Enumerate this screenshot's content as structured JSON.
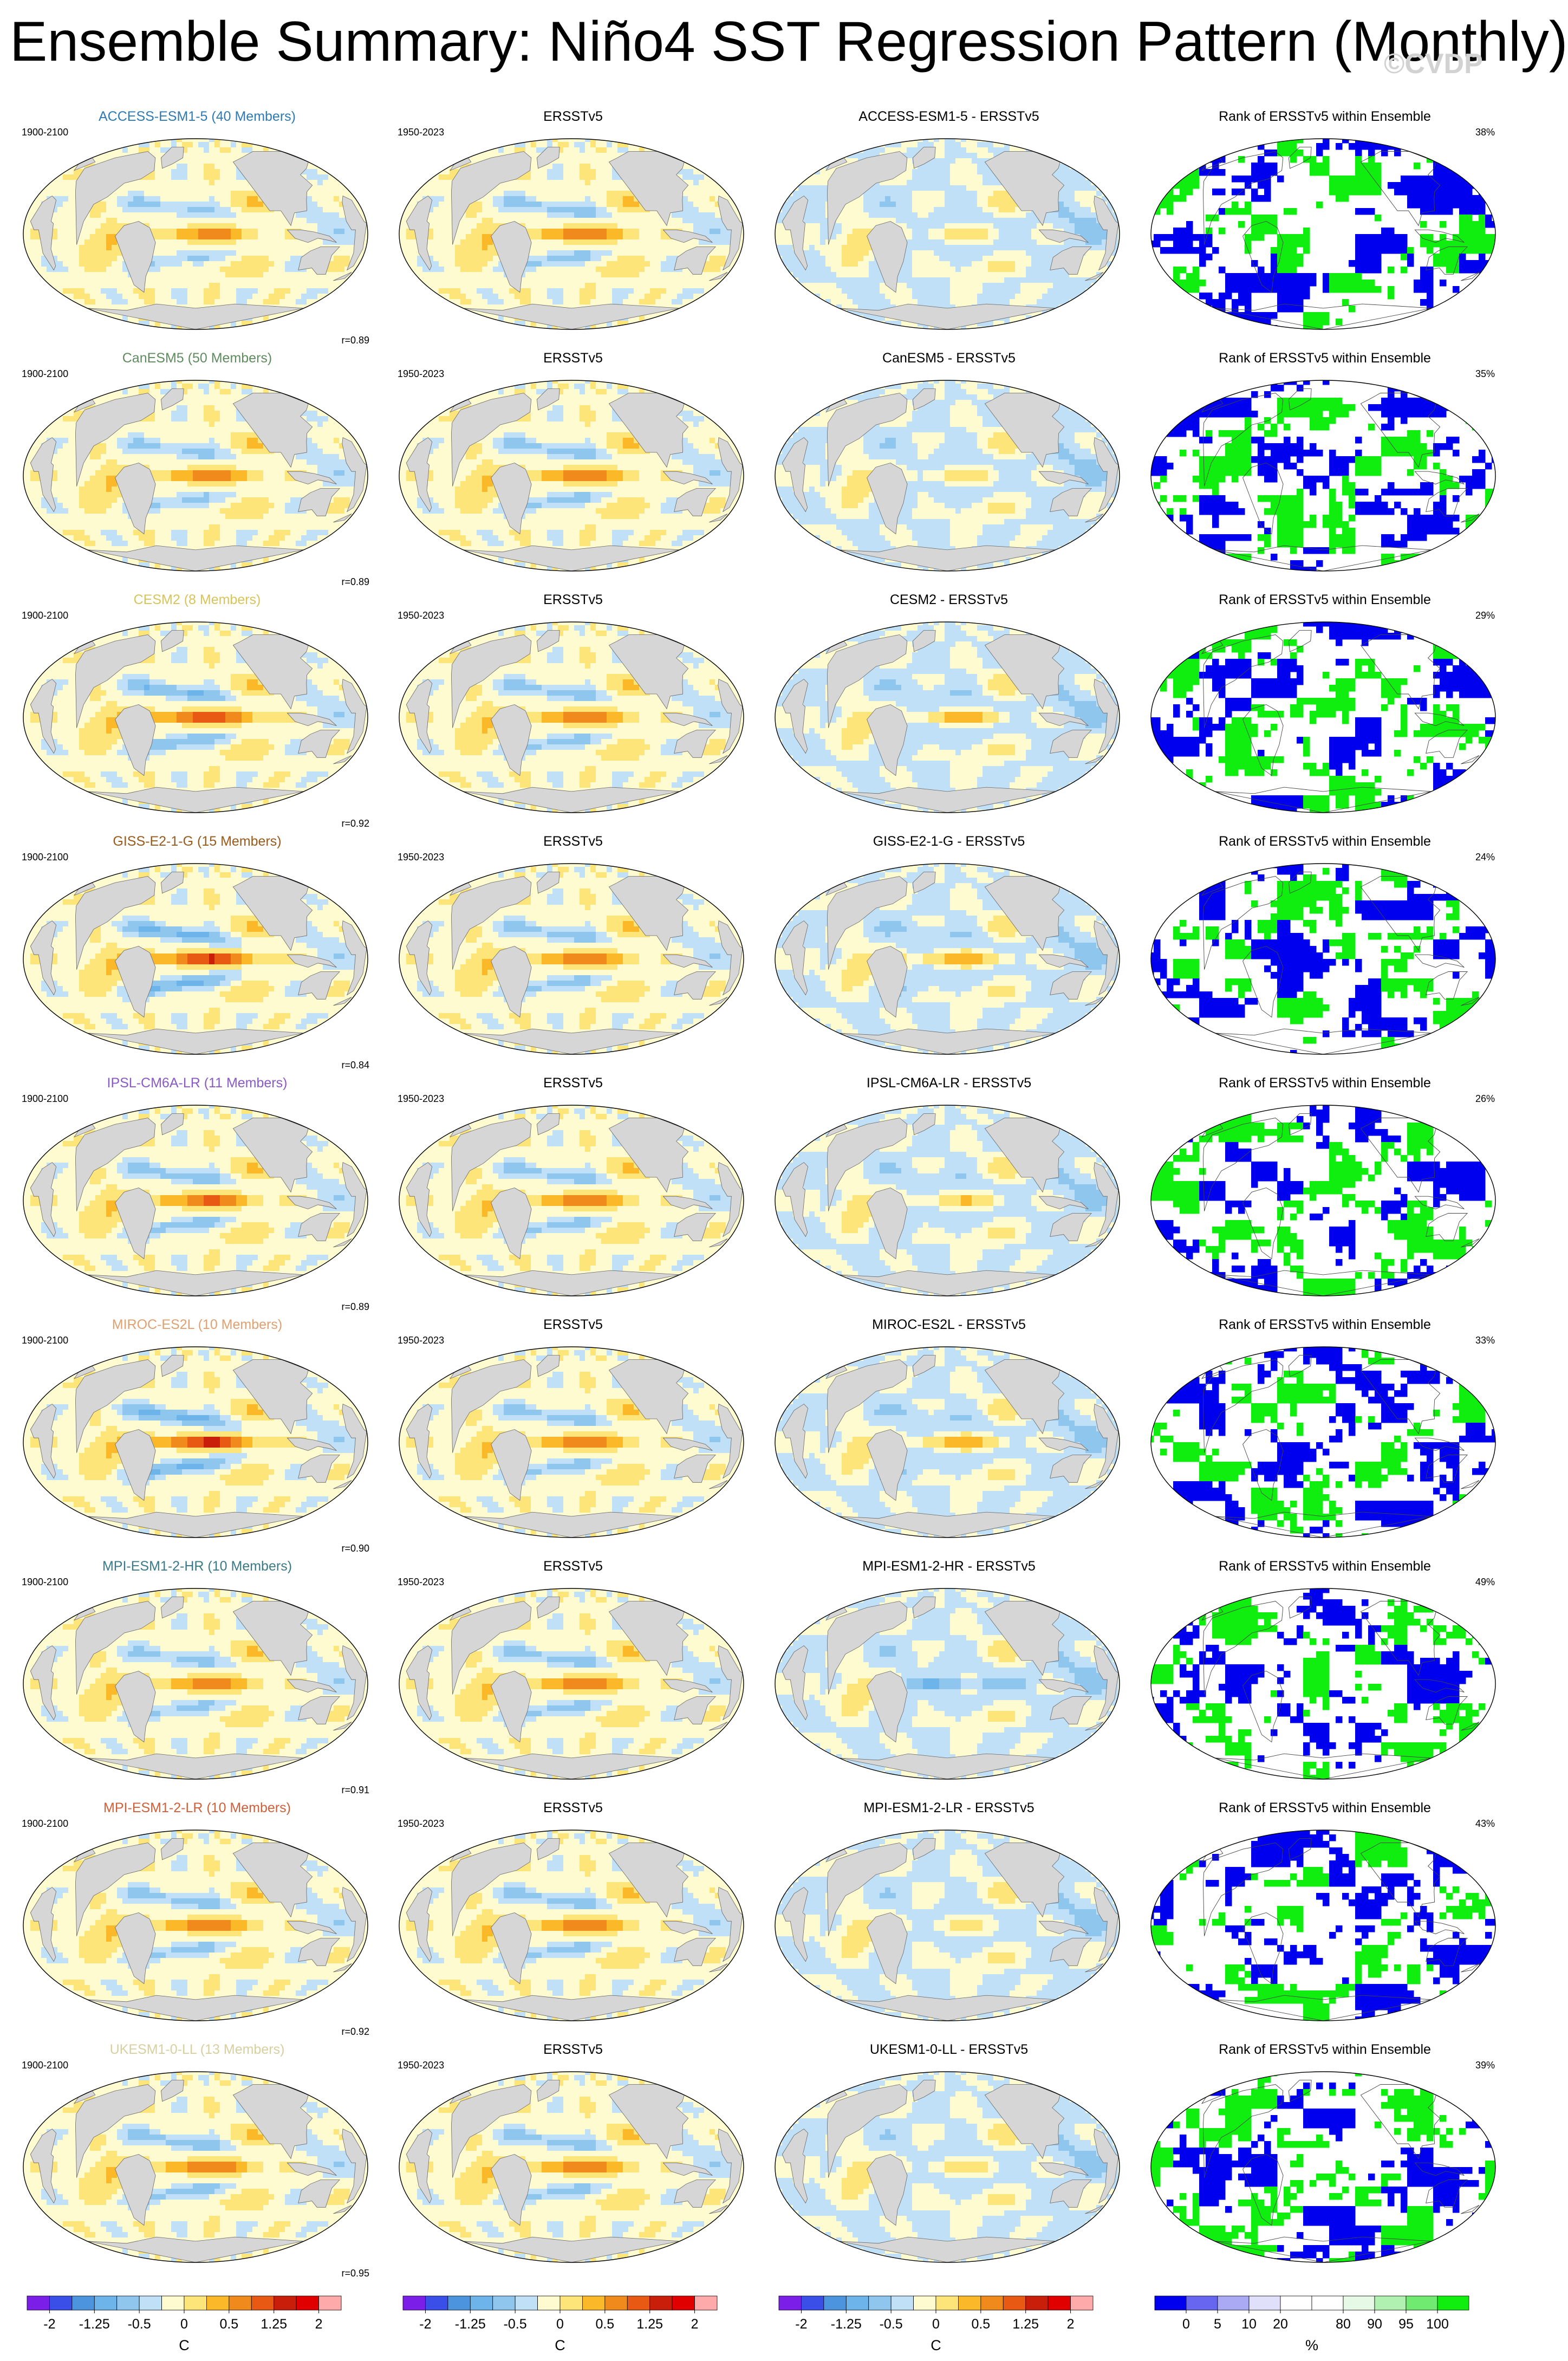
{
  "title": "Ensemble Summary: Niño4 SST Regression Pattern (Monthly)",
  "watermark": "©CVDP",
  "colors": {
    "land": "#d6d6d6",
    "warm_strong": "#c81e0a",
    "warm": "#f08a1c",
    "warm_mid": "#fbb92a",
    "warm_weak": "#fde57a",
    "neutral": "#fffbd0",
    "cool_weak": "#bfe0f6",
    "cool": "#8ec6ee",
    "cool_strong": "#4c94dd",
    "rank_low": "#0000ee",
    "rank_high": "#10ee10",
    "rank_mid": "#ffffff"
  },
  "rows": [
    {
      "model": "ACCESS-ESM1-5 (40 Members)",
      "model_color": "#2e7bb4",
      "years": "1900-2100",
      "obs_years": "1950-2023",
      "obs": "ERSSTv5",
      "diff": "ACCESS-ESM1-5 - ERSSTv5",
      "rank": "Rank of ERSSTv5 within Ensemble",
      "pct": "38%",
      "r": "r=0.89",
      "amp": 1.05,
      "diff_amp": 0.35
    },
    {
      "model": "CanESM5 (50 Members)",
      "model_color": "#5e8c5e",
      "years": "1900-2100",
      "obs_years": "1950-2023",
      "obs": "ERSSTv5",
      "diff": "CanESM5 - ERSSTv5",
      "rank": "Rank of ERSSTv5 within Ensemble",
      "pct": "35%",
      "r": "r=0.89",
      "amp": 1.15,
      "diff_amp": 0.4
    },
    {
      "model": "CESM2 (8 Members)",
      "model_color": "#d8c45a",
      "years": "1900-2100",
      "obs_years": "1950-2023",
      "obs": "ERSSTv5",
      "diff": "CESM2 - ERSSTv5",
      "rank": "Rank of ERSSTv5 within Ensemble",
      "pct": "29%",
      "r": "r=0.92",
      "amp": 1.6,
      "diff_amp": 0.75
    },
    {
      "model": "GISS-E2-1-G (15 Members)",
      "model_color": "#9a5a1a",
      "years": "1900-2100",
      "obs_years": "1950-2023",
      "obs": "ERSSTv5",
      "diff": "GISS-E2-1-G - ERSSTv5",
      "rank": "Rank of ERSSTv5 within Ensemble",
      "pct": "24%",
      "r": "r=0.84",
      "amp": 1.75,
      "diff_amp": 0.85
    },
    {
      "model": "IPSL-CM6A-LR (11 Members)",
      "model_color": "#8a5ac8",
      "years": "1900-2100",
      "obs_years": "1950-2023",
      "obs": "ERSSTv5",
      "diff": "IPSL-CM6A-LR - ERSSTv5",
      "rank": "Rank of ERSSTv5 within Ensemble",
      "pct": "26%",
      "r": "r=0.89",
      "amp": 1.35,
      "diff_amp": 0.55
    },
    {
      "model": "MIROC-ES2L (10 Members)",
      "model_color": "#e0a070",
      "years": "1900-2100",
      "obs_years": "1950-2023",
      "obs": "ERSSTv5",
      "diff": "MIROC-ES2L - ERSSTv5",
      "rank": "Rank of ERSSTv5 within Ensemble",
      "pct": "33%",
      "r": "r=0.90",
      "amp": 1.8,
      "diff_amp": 0.8
    },
    {
      "model": "MPI-ESM1-2-HR (10 Members)",
      "model_color": "#3a7a88",
      "years": "1900-2100",
      "obs_years": "1950-2023",
      "obs": "ERSSTv5",
      "diff": "MPI-ESM1-2-HR - ERSSTv5",
      "rank": "Rank of ERSSTv5 within Ensemble",
      "pct": "49%",
      "r": "r=0.91",
      "amp": 1.2,
      "diff_amp": -0.45
    },
    {
      "model": "MPI-ESM1-2-LR (10 Members)",
      "model_color": "#d0603a",
      "years": "1900-2100",
      "obs_years": "1950-2023",
      "obs": "ERSSTv5",
      "diff": "MPI-ESM1-2-LR - ERSSTv5",
      "rank": "Rank of ERSSTv5 within Ensemble",
      "pct": "43%",
      "r": "r=0.92",
      "amp": 1.25,
      "diff_amp": 0.3
    },
    {
      "model": "UKESM1-0-LL (13 Members)",
      "model_color": "#d6d0a0",
      "years": "1900-2100",
      "obs_years": "1950-2023",
      "obs": "ERSSTv5",
      "diff": "UKESM1-0-LL - ERSSTv5",
      "rank": "Rank of ERSSTv5 within Ensemble",
      "pct": "39%",
      "r": "r=0.95",
      "amp": 1.3,
      "diff_amp": 0.35
    }
  ],
  "colorbars": {
    "sst": {
      "colors": [
        "#7a1ee8",
        "#3a4ee8",
        "#4c94dd",
        "#6cb4ea",
        "#8ec6ee",
        "#bfe0f6",
        "#fffbd0",
        "#fde57a",
        "#fbb92a",
        "#f08a1c",
        "#e85a14",
        "#c81e0a",
        "#e00000",
        "#ffaaaa"
      ],
      "labels": [
        "-2",
        "-1.25",
        "-0.5",
        "0",
        "0.5",
        "1.25",
        "2"
      ],
      "label_positions": [
        1,
        3,
        5,
        7,
        9,
        11,
        13
      ],
      "unit": "C"
    },
    "rank": {
      "colors": [
        "#0000ee",
        "#6666f0",
        "#aaaaf4",
        "#e0e0fa",
        "#ffffff",
        "#ffffff",
        "#e6f8e6",
        "#b0f0b0",
        "#70ea70",
        "#10ee10"
      ],
      "labels": [
        "0",
        "5",
        "10",
        "20",
        "80",
        "90",
        "95",
        "100"
      ],
      "label_positions": [
        1,
        2,
        3,
        4,
        6,
        7,
        8,
        9
      ],
      "unit": "%"
    }
  }
}
